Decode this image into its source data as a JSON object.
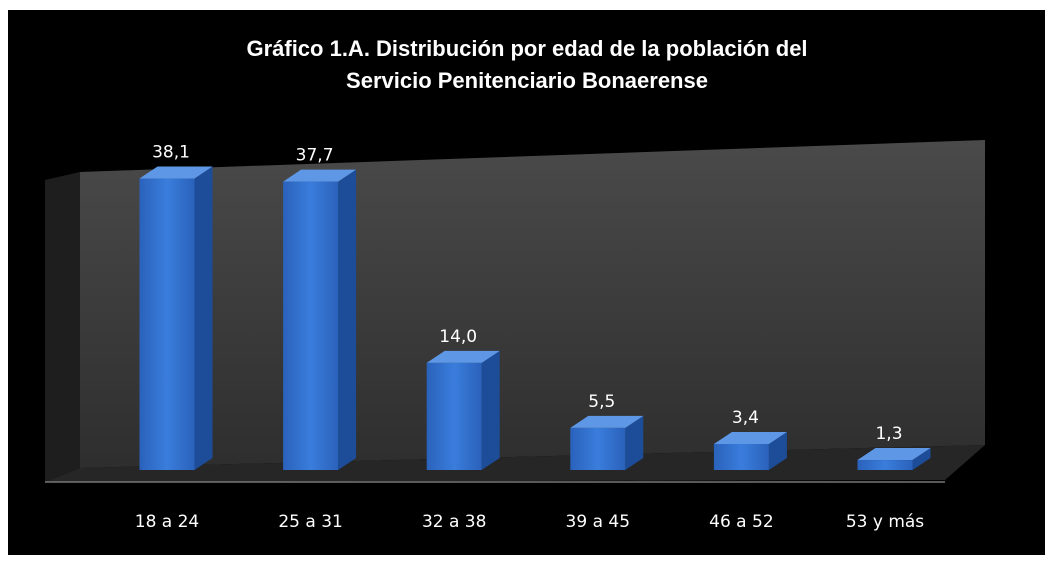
{
  "chart_data": {
    "type": "bar3d",
    "title": [
      "Gráfico 1.A. Distribución por edad de la población del",
      "Servicio Penitenciario Bonaerense"
    ],
    "categories": [
      "18 a 24",
      "25 a 31",
      "32 a 38",
      "39 a 45",
      "46 a 52",
      "53 y más"
    ],
    "values": [
      38.1,
      37.7,
      14.0,
      5.5,
      3.4,
      1.3
    ],
    "value_labels": [
      "38,1",
      "37,7",
      "14,0",
      "5,5",
      "3,4",
      "1,3"
    ],
    "color": "#2f6fcf"
  }
}
